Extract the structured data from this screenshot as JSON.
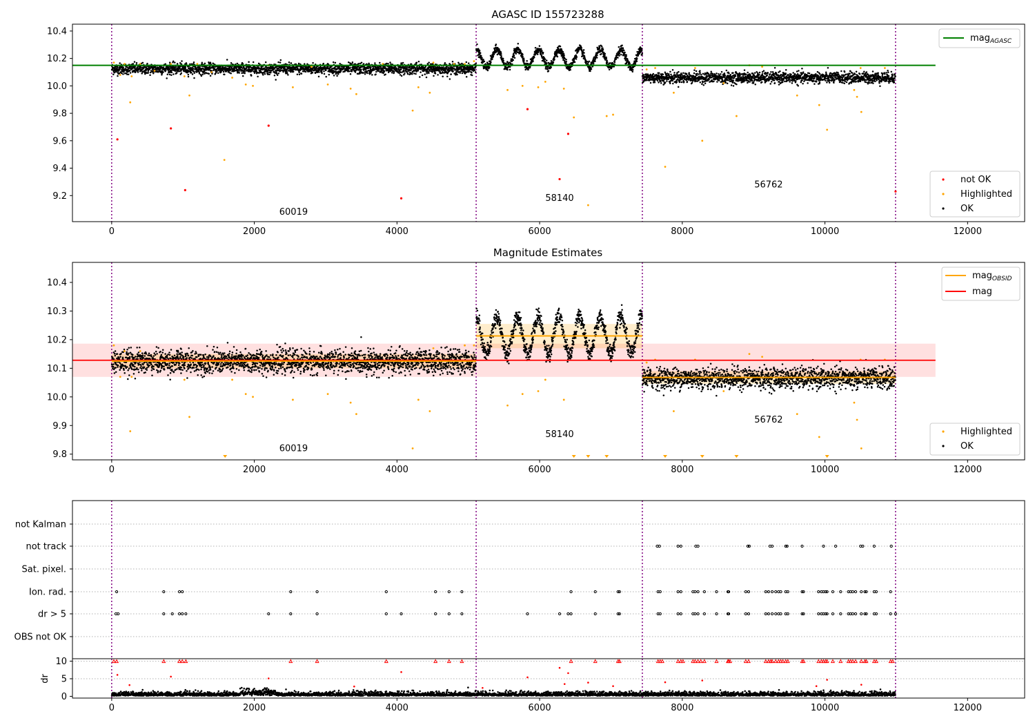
{
  "chart_data": [
    {
      "type": "scatter",
      "title": "AGASC ID 155723288",
      "xlim": [
        -550,
        12800
      ],
      "ylim": [
        9.01,
        10.45
      ],
      "xticks": [
        0,
        2000,
        4000,
        6000,
        8000,
        10000,
        12000
      ],
      "yticks": [
        9.2,
        9.4,
        9.6,
        9.8,
        10.0,
        10.2,
        10.4
      ],
      "xtick_labels": [
        "0",
        "2000",
        "4000",
        "6000",
        "8000",
        "10000",
        "12000"
      ],
      "ytick_labels": [
        "9.2",
        "9.4",
        "9.6",
        "9.8",
        "10.0",
        "10.2",
        "10.4"
      ],
      "obs_boundaries": [
        0,
        5110,
        7440,
        10990
      ],
      "mag_agasc": {
        "value": 10.15,
        "x_range": [
          0,
          11550
        ],
        "color": "#008000"
      },
      "segments": [
        {
          "x0": 0,
          "x1": 5110,
          "base": 10.125,
          "spread": 0.02,
          "amp": 0,
          "period": 0
        },
        {
          "x0": 5110,
          "x1": 7440,
          "base": 10.2,
          "spread": 0.015,
          "amp": 0.065,
          "period": 290
        },
        {
          "x0": 7440,
          "x1": 10990,
          "base": 10.06,
          "spread": 0.02,
          "amp": 0,
          "period": 0
        }
      ],
      "highlighted_points": [
        [
          30,
          10.17
        ],
        [
          120,
          10.08
        ],
        [
          180,
          10.16
        ],
        [
          260,
          9.88
        ],
        [
          280,
          10.07
        ],
        [
          400,
          10.16
        ],
        [
          600,
          10.11
        ],
        [
          830,
          10.16
        ],
        [
          1020,
          10.07
        ],
        [
          1090,
          9.93
        ],
        [
          1200,
          10.16
        ],
        [
          1400,
          10.1
        ],
        [
          1580,
          9.46
        ],
        [
          1690,
          10.06
        ],
        [
          1880,
          10.01
        ],
        [
          1980,
          10.0
        ],
        [
          2200,
          10.15
        ],
        [
          2540,
          9.99
        ],
        [
          2800,
          10.14
        ],
        [
          3030,
          10.01
        ],
        [
          3350,
          9.98
        ],
        [
          3430,
          9.94
        ],
        [
          3800,
          10.16
        ],
        [
          4220,
          9.82
        ],
        [
          4300,
          9.99
        ],
        [
          4460,
          9.95
        ],
        [
          4510,
          10.17
        ],
        [
          4800,
          10.16
        ],
        [
          4950,
          10.16
        ],
        [
          5080,
          10.18
        ],
        [
          5550,
          9.97
        ],
        [
          5760,
          10.0
        ],
        [
          5980,
          9.99
        ],
        [
          6080,
          10.03
        ],
        [
          6340,
          9.98
        ],
        [
          6480,
          9.77
        ],
        [
          6680,
          9.13
        ],
        [
          6940,
          9.78
        ],
        [
          7030,
          9.79
        ],
        [
          7500,
          10.12
        ],
        [
          7620,
          10.13
        ],
        [
          7760,
          9.41
        ],
        [
          7880,
          9.95
        ],
        [
          8180,
          10.13
        ],
        [
          8280,
          9.6
        ],
        [
          8580,
          10.02
        ],
        [
          8760,
          9.78
        ],
        [
          8940,
          10.15
        ],
        [
          9120,
          10.14
        ],
        [
          9610,
          9.93
        ],
        [
          9920,
          9.86
        ],
        [
          10030,
          9.68
        ],
        [
          10410,
          9.97
        ],
        [
          10450,
          9.92
        ],
        [
          10510,
          9.81
        ],
        [
          10500,
          10.13
        ],
        [
          10840,
          10.13
        ]
      ],
      "not_ok_points": [
        [
          80,
          9.61
        ],
        [
          830,
          9.69
        ],
        [
          1030,
          9.24
        ],
        [
          2200,
          9.71
        ],
        [
          4060,
          9.18
        ],
        [
          5830,
          9.83
        ],
        [
          6280,
          9.32
        ],
        [
          6400,
          9.65
        ],
        [
          10990,
          9.23
        ]
      ],
      "annotations": [
        {
          "text": "60019",
          "x": 2550,
          "y": 9.06
        },
        {
          "text": "58140",
          "x": 6280,
          "y": 9.16
        },
        {
          "text": "56762",
          "x": 9210,
          "y": 9.26
        }
      ],
      "legend_top": [
        {
          "label": "mag",
          "sub": "AGASC",
          "color": "#008000"
        }
      ],
      "legend_bottom": [
        {
          "label": "not OK",
          "color": "#ff0000"
        },
        {
          "label": "Highlighted",
          "color": "#ffa500"
        },
        {
          "label": "OK",
          "color": "#000000"
        }
      ],
      "legend_top_placement": "upper right",
      "legend_bottom_placement": "lower right"
    },
    {
      "type": "scatter",
      "title": "Magnitude Estimates",
      "xlim": [
        -550,
        12800
      ],
      "ylim": [
        9.78,
        10.47
      ],
      "xticks": [
        0,
        2000,
        4000,
        6000,
        8000,
        10000,
        12000
      ],
      "yticks": [
        9.8,
        9.9,
        10.0,
        10.1,
        10.2,
        10.3,
        10.4
      ],
      "xtick_labels": [
        "0",
        "2000",
        "4000",
        "6000",
        "8000",
        "10000",
        "12000"
      ],
      "ytick_labels": [
        "9.8",
        "9.9",
        "10.0",
        "10.1",
        "10.2",
        "10.3",
        "10.4"
      ],
      "obs_boundaries": [
        0,
        5110,
        7440,
        10990
      ],
      "mag": {
        "value": 10.128,
        "band": [
          10.07,
          10.186
        ],
        "x_range": [
          -550,
          11550
        ],
        "color": "#ff0000"
      },
      "mag_obsid": [
        {
          "x0": 0,
          "x1": 5110,
          "value": 10.125,
          "band": [
            10.1,
            10.15
          ]
        },
        {
          "x0": 5110,
          "x1": 7440,
          "value": 10.213,
          "band": [
            10.17,
            10.255
          ]
        },
        {
          "x0": 7440,
          "x1": 10990,
          "value": 10.068,
          "band": [
            10.045,
            10.09
          ]
        }
      ],
      "segments": [
        {
          "x0": 0,
          "x1": 5110,
          "base": 10.123,
          "spread": 0.02,
          "amp": 0,
          "period": 0
        },
        {
          "x0": 5110,
          "x1": 7440,
          "base": 10.215,
          "spread": 0.015,
          "amp": 0.065,
          "period": 290
        },
        {
          "x0": 7440,
          "x1": 10990,
          "base": 10.065,
          "spread": 0.018,
          "amp": 0,
          "period": 0
        }
      ],
      "highlighted_points": [
        [
          30,
          10.18
        ],
        [
          120,
          10.07
        ],
        [
          180,
          10.16
        ],
        [
          260,
          9.88
        ],
        [
          280,
          10.07
        ],
        [
          400,
          10.16
        ],
        [
          1020,
          10.06
        ],
        [
          1090,
          9.93
        ],
        [
          1690,
          10.06
        ],
        [
          1880,
          10.01
        ],
        [
          1980,
          10.0
        ],
        [
          2540,
          9.99
        ],
        [
          3030,
          10.01
        ],
        [
          3350,
          9.98
        ],
        [
          3430,
          9.94
        ],
        [
          4220,
          9.82
        ],
        [
          4300,
          9.99
        ],
        [
          4460,
          9.95
        ],
        [
          4510,
          10.17
        ],
        [
          4950,
          10.18
        ],
        [
          5080,
          10.18
        ],
        [
          5550,
          9.97
        ],
        [
          5760,
          10.01
        ],
        [
          5980,
          10.02
        ],
        [
          6080,
          10.06
        ],
        [
          6340,
          9.99
        ],
        [
          7500,
          10.12
        ],
        [
          7620,
          10.13
        ],
        [
          7880,
          9.95
        ],
        [
          8180,
          10.13
        ],
        [
          8580,
          10.02
        ],
        [
          8940,
          10.15
        ],
        [
          9120,
          10.14
        ],
        [
          9610,
          9.94
        ],
        [
          9920,
          9.86
        ],
        [
          10410,
          9.98
        ],
        [
          10450,
          9.92
        ],
        [
          10510,
          9.82
        ],
        [
          10500,
          10.13
        ],
        [
          10840,
          10.13
        ]
      ],
      "below_limit_markers": [
        1590,
        6480,
        6680,
        6940,
        7760,
        8280,
        8760,
        10030
      ],
      "annotations": [
        {
          "text": "60019",
          "x": 2550,
          "y": 9.81
        },
        {
          "text": "58140",
          "x": 6280,
          "y": 9.86
        },
        {
          "text": "56762",
          "x": 9210,
          "y": 9.91
        }
      ],
      "legend_top": [
        {
          "label": "mag",
          "sub": "OBSID",
          "color": "#ffa500"
        },
        {
          "label": "mag",
          "sub": "",
          "color": "#ff0000"
        }
      ],
      "legend_bottom": [
        {
          "label": "Highlighted",
          "color": "#ffa500"
        },
        {
          "label": "OK",
          "color": "#000000"
        }
      ],
      "legend_top_placement": "upper right",
      "legend_bottom_placement": "lower right"
    },
    {
      "type": "scatter",
      "title": "",
      "xlim": [
        -550,
        12800
      ],
      "obs_boundaries": [
        0,
        5110,
        7440,
        10990
      ],
      "flag_rows": [
        "not Kalman",
        "not track",
        "Sat. pixel.",
        "Ion. rad.",
        "dr > 5",
        "OBS not OK"
      ],
      "flags": {
        "not track": [
          7650,
          7680,
          7940,
          7980,
          8190,
          8220,
          8920,
          8940,
          9230,
          9260,
          9450,
          9470,
          9680,
          9980,
          10150,
          10500,
          10530,
          10690,
          10930
        ],
        "Ion. rad.": [
          70,
          730,
          950,
          990,
          2510,
          2880,
          3850,
          4540,
          4730,
          4910,
          6440,
          6780,
          7100,
          7120,
          7660,
          7690,
          7940,
          7980,
          8150,
          8180,
          8220,
          8310,
          8480,
          8640,
          8650,
          8890,
          8930,
          9170,
          9210,
          9260,
          9310,
          9350,
          9380,
          9450,
          9480,
          9680,
          9700,
          9910,
          9950,
          9980,
          10010,
          10030,
          10110,
          10220,
          10330,
          10360,
          10390,
          10430,
          10510,
          10560,
          10580,
          10690,
          10720,
          10920
        ],
        "dr > 5": [
          60,
          90,
          730,
          850,
          950,
          990,
          1040,
          2200,
          2510,
          2880,
          3850,
          4060,
          4540,
          4730,
          4910,
          5830,
          6280,
          6400,
          6440,
          6780,
          7100,
          7120,
          7660,
          7690,
          7940,
          7980,
          8150,
          8180,
          8220,
          8310,
          8480,
          8640,
          8650,
          8890,
          8930,
          9170,
          9210,
          9260,
          9310,
          9350,
          9380,
          9450,
          9480,
          9680,
          9700,
          9910,
          9950,
          9980,
          10010,
          10030,
          10110,
          10220,
          10330,
          10360,
          10390,
          10430,
          10510,
          10560,
          10580,
          10690,
          10720,
          10920,
          10990
        ]
      }
    },
    {
      "type": "scatter",
      "title": "",
      "ylabel": "dr",
      "xlim": [
        -550,
        12800
      ],
      "ylim": [
        -0.5,
        10.7
      ],
      "xticks": [
        0,
        2000,
        4000,
        6000,
        8000,
        10000,
        12000
      ],
      "yticks": [
        0,
        5,
        10
      ],
      "xtick_labels": [
        "0",
        "2000",
        "4000",
        "6000",
        "8000",
        "10000",
        "12000"
      ],
      "ytick_labels": [
        "0",
        "5",
        "10"
      ],
      "obs_boundaries": [
        0,
        5110,
        7440,
        10990
      ],
      "capped_markers": [
        30,
        70,
        730,
        950,
        990,
        1040,
        2510,
        2880,
        3850,
        4540,
        4730,
        4910,
        6440,
        6780,
        7100,
        7120,
        7660,
        7690,
        7720,
        7940,
        7980,
        8010,
        8150,
        8180,
        8220,
        8260,
        8310,
        8480,
        8640,
        8650,
        8670,
        8890,
        8930,
        9170,
        9210,
        9240,
        9260,
        9310,
        9350,
        9380,
        9410,
        9450,
        9480,
        9680,
        9700,
        9910,
        9950,
        9980,
        10010,
        10030,
        10110,
        10220,
        10330,
        10360,
        10390,
        10430,
        10510,
        10560,
        10580,
        10690,
        10720,
        10920,
        10950
      ],
      "outlier_points": [
        [
          80,
          6.1
        ],
        [
          250,
          3.2
        ],
        [
          830,
          5.6
        ],
        [
          2200,
          5.1
        ],
        [
          4060,
          6.9
        ],
        [
          5830,
          5.4
        ],
        [
          6280,
          8.1
        ],
        [
          6350,
          3.5
        ],
        [
          6400,
          6.6
        ],
        [
          6680,
          3.9
        ],
        [
          7030,
          2.9
        ],
        [
          7760,
          4.0
        ],
        [
          8280,
          4.5
        ],
        [
          10030,
          4.7
        ],
        [
          10510,
          3.3
        ],
        [
          5200,
          2.4
        ],
        [
          3400,
          2.8
        ],
        [
          9880,
          2.9
        ]
      ]
    }
  ]
}
